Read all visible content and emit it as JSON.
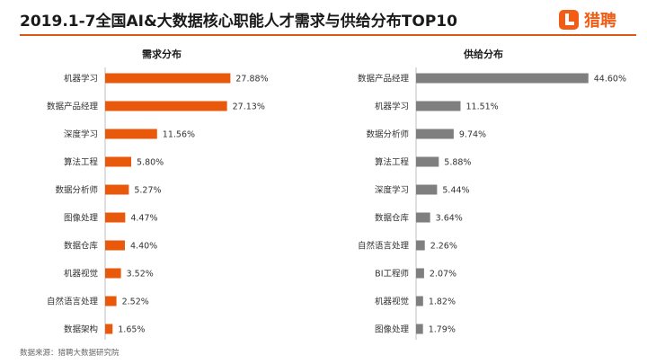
{
  "title": "2019.1-7全国AI&大数据核心职能人才需求与供给分布TOP10",
  "brand": {
    "name": "猎聘",
    "icon": "liepin-logo-icon",
    "color": "#f25c14"
  },
  "footnote": "数据来源：猎聘大数据研究院",
  "chart_data": [
    {
      "type": "bar",
      "orientation": "horizontal",
      "title": "需求分布",
      "color": "#e8590c",
      "unit": "%",
      "categories": [
        "机器学习",
        "数据产品经理",
        "深度学习",
        "算法工程",
        "数据分析师",
        "图像处理",
        "数据仓库",
        "机器视觉",
        "自然语言处理",
        "数据架构"
      ],
      "values": [
        27.88,
        27.13,
        11.56,
        5.8,
        5.27,
        4.47,
        4.4,
        3.52,
        2.52,
        1.65
      ],
      "labels": [
        "27.88%",
        "27.13%",
        "11.56%",
        "5.80%",
        "5.27%",
        "4.47%",
        "4.40%",
        "3.52%",
        "2.52%",
        "1.65%"
      ]
    },
    {
      "type": "bar",
      "orientation": "horizontal",
      "title": "供给分布",
      "color": "#7f7f7f",
      "unit": "%",
      "categories": [
        "数据产品经理",
        "机器学习",
        "数据分析师",
        "算法工程",
        "深度学习",
        "数据仓库",
        "自然语言处理",
        "BI工程师",
        "机器视觉",
        "图像处理"
      ],
      "values": [
        44.6,
        11.51,
        9.74,
        5.88,
        5.44,
        3.64,
        2.26,
        2.07,
        1.82,
        1.79
      ],
      "labels": [
        "44.60%",
        "11.51%",
        "9.74%",
        "5.88%",
        "5.44%",
        "3.64%",
        "2.26%",
        "2.07%",
        "1.82%",
        "1.79%"
      ]
    }
  ]
}
